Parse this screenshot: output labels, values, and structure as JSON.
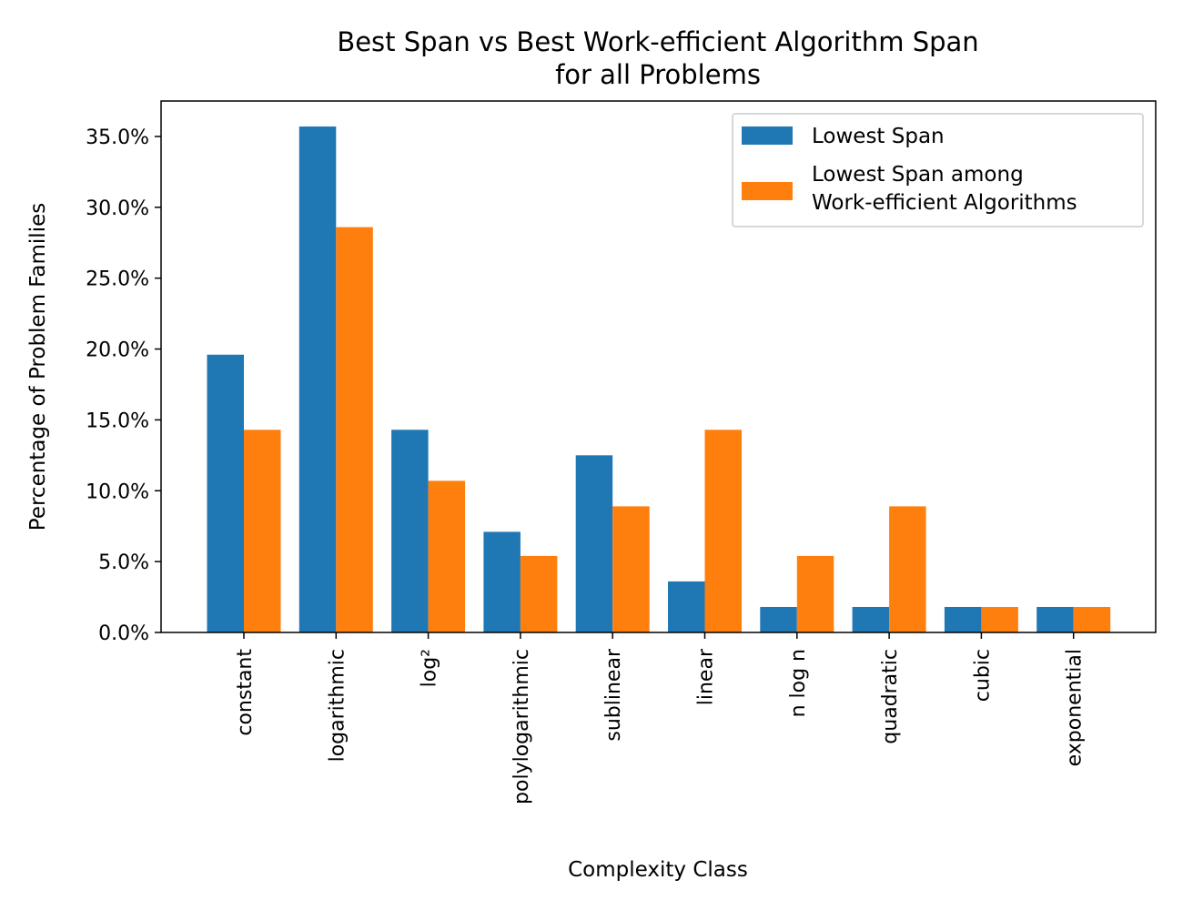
{
  "chart_data": {
    "type": "bar",
    "title_line1": "Best Span vs Best Work-efficient Algorithm Span",
    "title_line2": "for all Problems",
    "xlabel": "Complexity Class",
    "ylabel": "Percentage of Problem Families",
    "categories": [
      "constant",
      "logarithmic",
      "log²",
      "polylogarithmic",
      "sublinear",
      "linear",
      "n log n",
      "quadratic",
      "cubic",
      "exponential"
    ],
    "series": [
      {
        "name": "Lowest Span",
        "color": "#1f77b4",
        "values": [
          19.6,
          35.7,
          14.3,
          7.1,
          12.5,
          3.6,
          1.8,
          1.8,
          1.8,
          1.8
        ]
      },
      {
        "name": "Lowest Span among Work-efficient Algorithms",
        "name_line1": "Lowest Span among",
        "name_line2": "Work-efficient Algorithms",
        "color": "#ff7f0e",
        "values": [
          14.3,
          28.6,
          10.7,
          5.4,
          8.9,
          14.3,
          5.4,
          8.9,
          1.8,
          1.8
        ]
      }
    ],
    "ylim": [
      0,
      37.5
    ],
    "yticks": [
      0,
      5,
      10,
      15,
      20,
      25,
      30,
      35
    ],
    "ytick_labels": [
      "0.0%",
      "5.0%",
      "10.0%",
      "15.0%",
      "20.0%",
      "25.0%",
      "30.0%",
      "35.0%"
    ],
    "grid": false,
    "legend_position": "top-right"
  }
}
